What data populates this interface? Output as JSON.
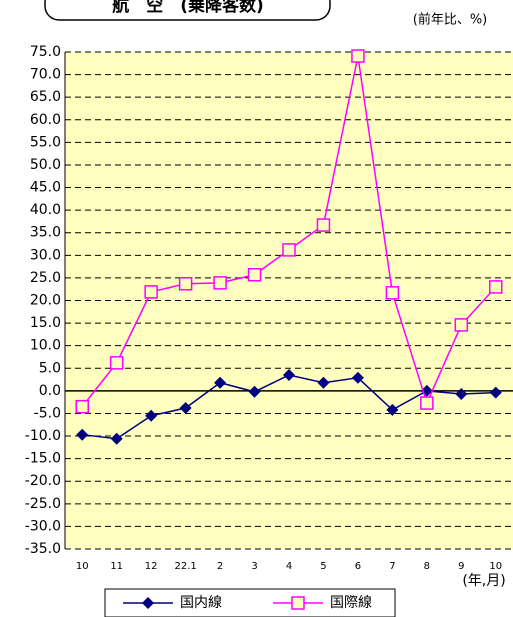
{
  "chart_data": {
    "type": "line",
    "title": "航　空　(乗降客数)",
    "unit_label": "(前年比、%)",
    "x_label": "(年,月)",
    "categories": [
      "10",
      "11",
      "12",
      "22.1",
      "2",
      "3",
      "4",
      "5",
      "6",
      "7",
      "8",
      "9",
      "10"
    ],
    "series": [
      {
        "name": "国内線",
        "color": "#000080",
        "marker": "diamond",
        "values": [
          -9.7,
          -10.6,
          -5.5,
          -3.8,
          1.8,
          -0.2,
          3.5,
          1.8,
          2.9,
          -4.2,
          0,
          -0.7,
          -0.4
        ]
      },
      {
        "name": "国際線",
        "color": "#ff00ff",
        "marker": "square",
        "values": [
          -3.5,
          6.2,
          21.9,
          23.7,
          23.9,
          25.7,
          31.2,
          36.7,
          74.1,
          21.7,
          -2.7,
          14.6,
          23.0
        ]
      }
    ],
    "ylim": [
      -35,
      75
    ],
    "yticks": [
      {
        "value": -35,
        "label": "-35.0"
      },
      {
        "value": -30,
        "label": "-30.0"
      },
      {
        "value": -25,
        "label": "-25.0"
      },
      {
        "value": -20,
        "label": "-20.0"
      },
      {
        "value": -15,
        "label": "-15.0"
      },
      {
        "value": -10,
        "label": "-10.0"
      },
      {
        "value": -5,
        "label": "-5.0"
      },
      {
        "value": 0,
        "label": "0.0"
      },
      {
        "value": 5,
        "label": "5.0"
      },
      {
        "value": 10,
        "label": "10.0"
      },
      {
        "value": 15,
        "label": "15.0"
      },
      {
        "value": 20,
        "label": "20.0"
      },
      {
        "value": 25,
        "label": "25.0"
      },
      {
        "value": 30,
        "label": "30.0"
      },
      {
        "value": 35,
        "label": "35.0"
      },
      {
        "value": 40,
        "label": "40.0"
      },
      {
        "value": 45,
        "label": "45.0"
      },
      {
        "value": 50,
        "label": "50.0"
      },
      {
        "value": 55,
        "label": "55.0"
      },
      {
        "value": 60,
        "label": "60.0"
      },
      {
        "value": 65,
        "label": "65.0"
      },
      {
        "value": 70,
        "label": "70.0"
      },
      {
        "value": 75,
        "label": "75.0"
      }
    ],
    "grid": true,
    "background": "#ffffc0"
  }
}
